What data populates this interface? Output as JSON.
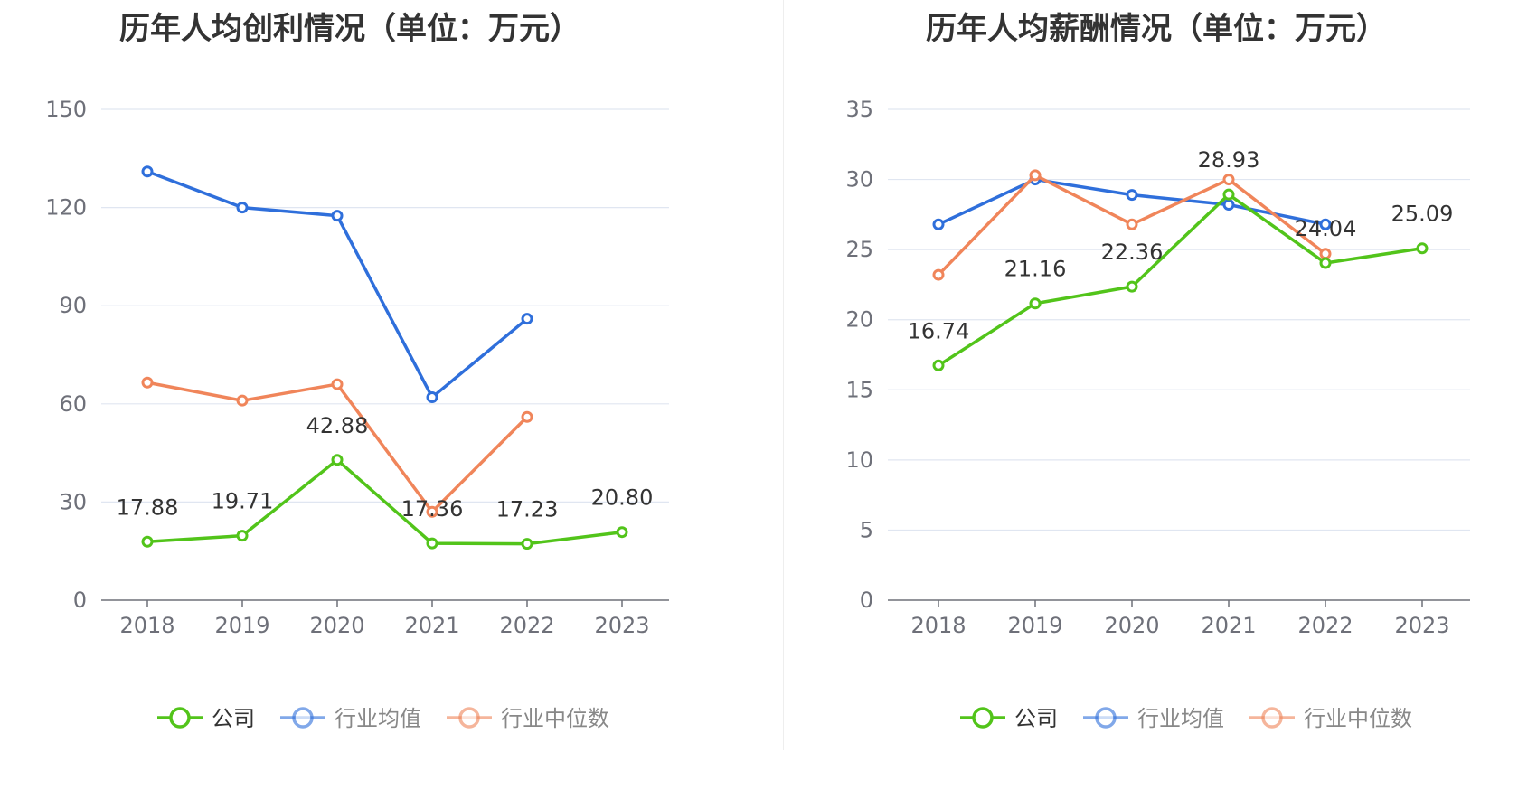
{
  "chart_data": [
    {
      "type": "line",
      "title": "历年人均创利情况（单位：万元）",
      "categories": [
        "2018",
        "2019",
        "2020",
        "2021",
        "2022",
        "2023"
      ],
      "ylim": [
        0,
        150
      ],
      "yticks": [
        "0",
        "30",
        "60",
        "90",
        "120",
        "150"
      ],
      "grid": true,
      "legend_position": "bottom",
      "series": [
        {
          "name": "公司",
          "color": "#52c41a",
          "values": [
            17.88,
            19.71,
            42.88,
            17.36,
            17.23,
            20.8
          ],
          "labels": [
            "17.88",
            "19.71",
            "42.88",
            "17.36",
            "17.23",
            "20.80"
          ]
        },
        {
          "name": "行业均值",
          "color": "#2f6fdb",
          "values": [
            131.0,
            120.0,
            117.5,
            62.0,
            86.0,
            null
          ]
        },
        {
          "name": "行业中位数",
          "color": "#f0855a",
          "values": [
            66.5,
            61.0,
            66.0,
            27.0,
            56.0,
            null
          ]
        }
      ]
    },
    {
      "type": "line",
      "title": "历年人均薪酬情况（单位：万元）",
      "categories": [
        "2018",
        "2019",
        "2020",
        "2021",
        "2022",
        "2023"
      ],
      "ylim": [
        0,
        35
      ],
      "yticks": [
        "0",
        "5",
        "10",
        "15",
        "20",
        "25",
        "30",
        "35"
      ],
      "grid": true,
      "legend_position": "bottom",
      "series": [
        {
          "name": "公司",
          "color": "#52c41a",
          "values": [
            16.74,
            21.16,
            22.36,
            28.93,
            24.04,
            25.09
          ],
          "labels": [
            "16.74",
            "21.16",
            "22.36",
            "28.93",
            "24.04",
            "25.09"
          ]
        },
        {
          "name": "行业均值",
          "color": "#2f6fdb",
          "values": [
            26.8,
            30.0,
            28.9,
            28.2,
            26.8,
            null
          ]
        },
        {
          "name": "行业中位数",
          "color": "#f0855a",
          "values": [
            23.2,
            30.3,
            26.8,
            30.0,
            24.7,
            null
          ]
        }
      ]
    }
  ]
}
